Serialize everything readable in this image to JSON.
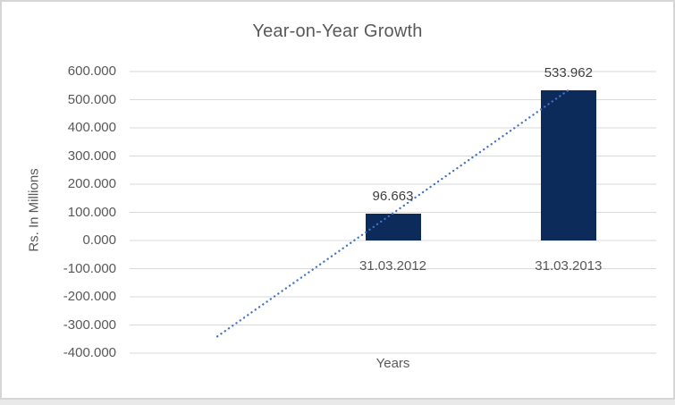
{
  "chart_data": {
    "type": "bar",
    "title": "Year-on-Year Growth",
    "xlabel": "Years",
    "ylabel": "Rs. In Millions",
    "categories": [
      "31.03.2012",
      "31.03.2013"
    ],
    "values": [
      96.663,
      533.962
    ],
    "data_labels": [
      "96.663",
      "533.962"
    ],
    "yticks": [
      600,
      500,
      400,
      300,
      200,
      100,
      0,
      -100,
      -200,
      -300,
      -400
    ],
    "ytick_labels": [
      "600.000",
      "500.000",
      "400.000",
      "300.000",
      "200.000",
      "100.000",
      "0.000",
      "-100.000",
      "-200.000",
      "-300.000",
      "-400.000"
    ],
    "ylim": [
      -400,
      600
    ],
    "grid": true,
    "legend": "none",
    "bar_color": "#0c2a5a",
    "gridline_color": "#d9d9d9",
    "axis_text_color": "#595959",
    "data_label_color": "#404040",
    "category_slots": 3,
    "bar_slots": [
      1,
      2
    ],
    "trendline": {
      "style": "dotted",
      "color": "#4472c4",
      "start_slot": 0,
      "start_value": -340.6,
      "end_slot": 2,
      "end_value": 533.962
    }
  }
}
